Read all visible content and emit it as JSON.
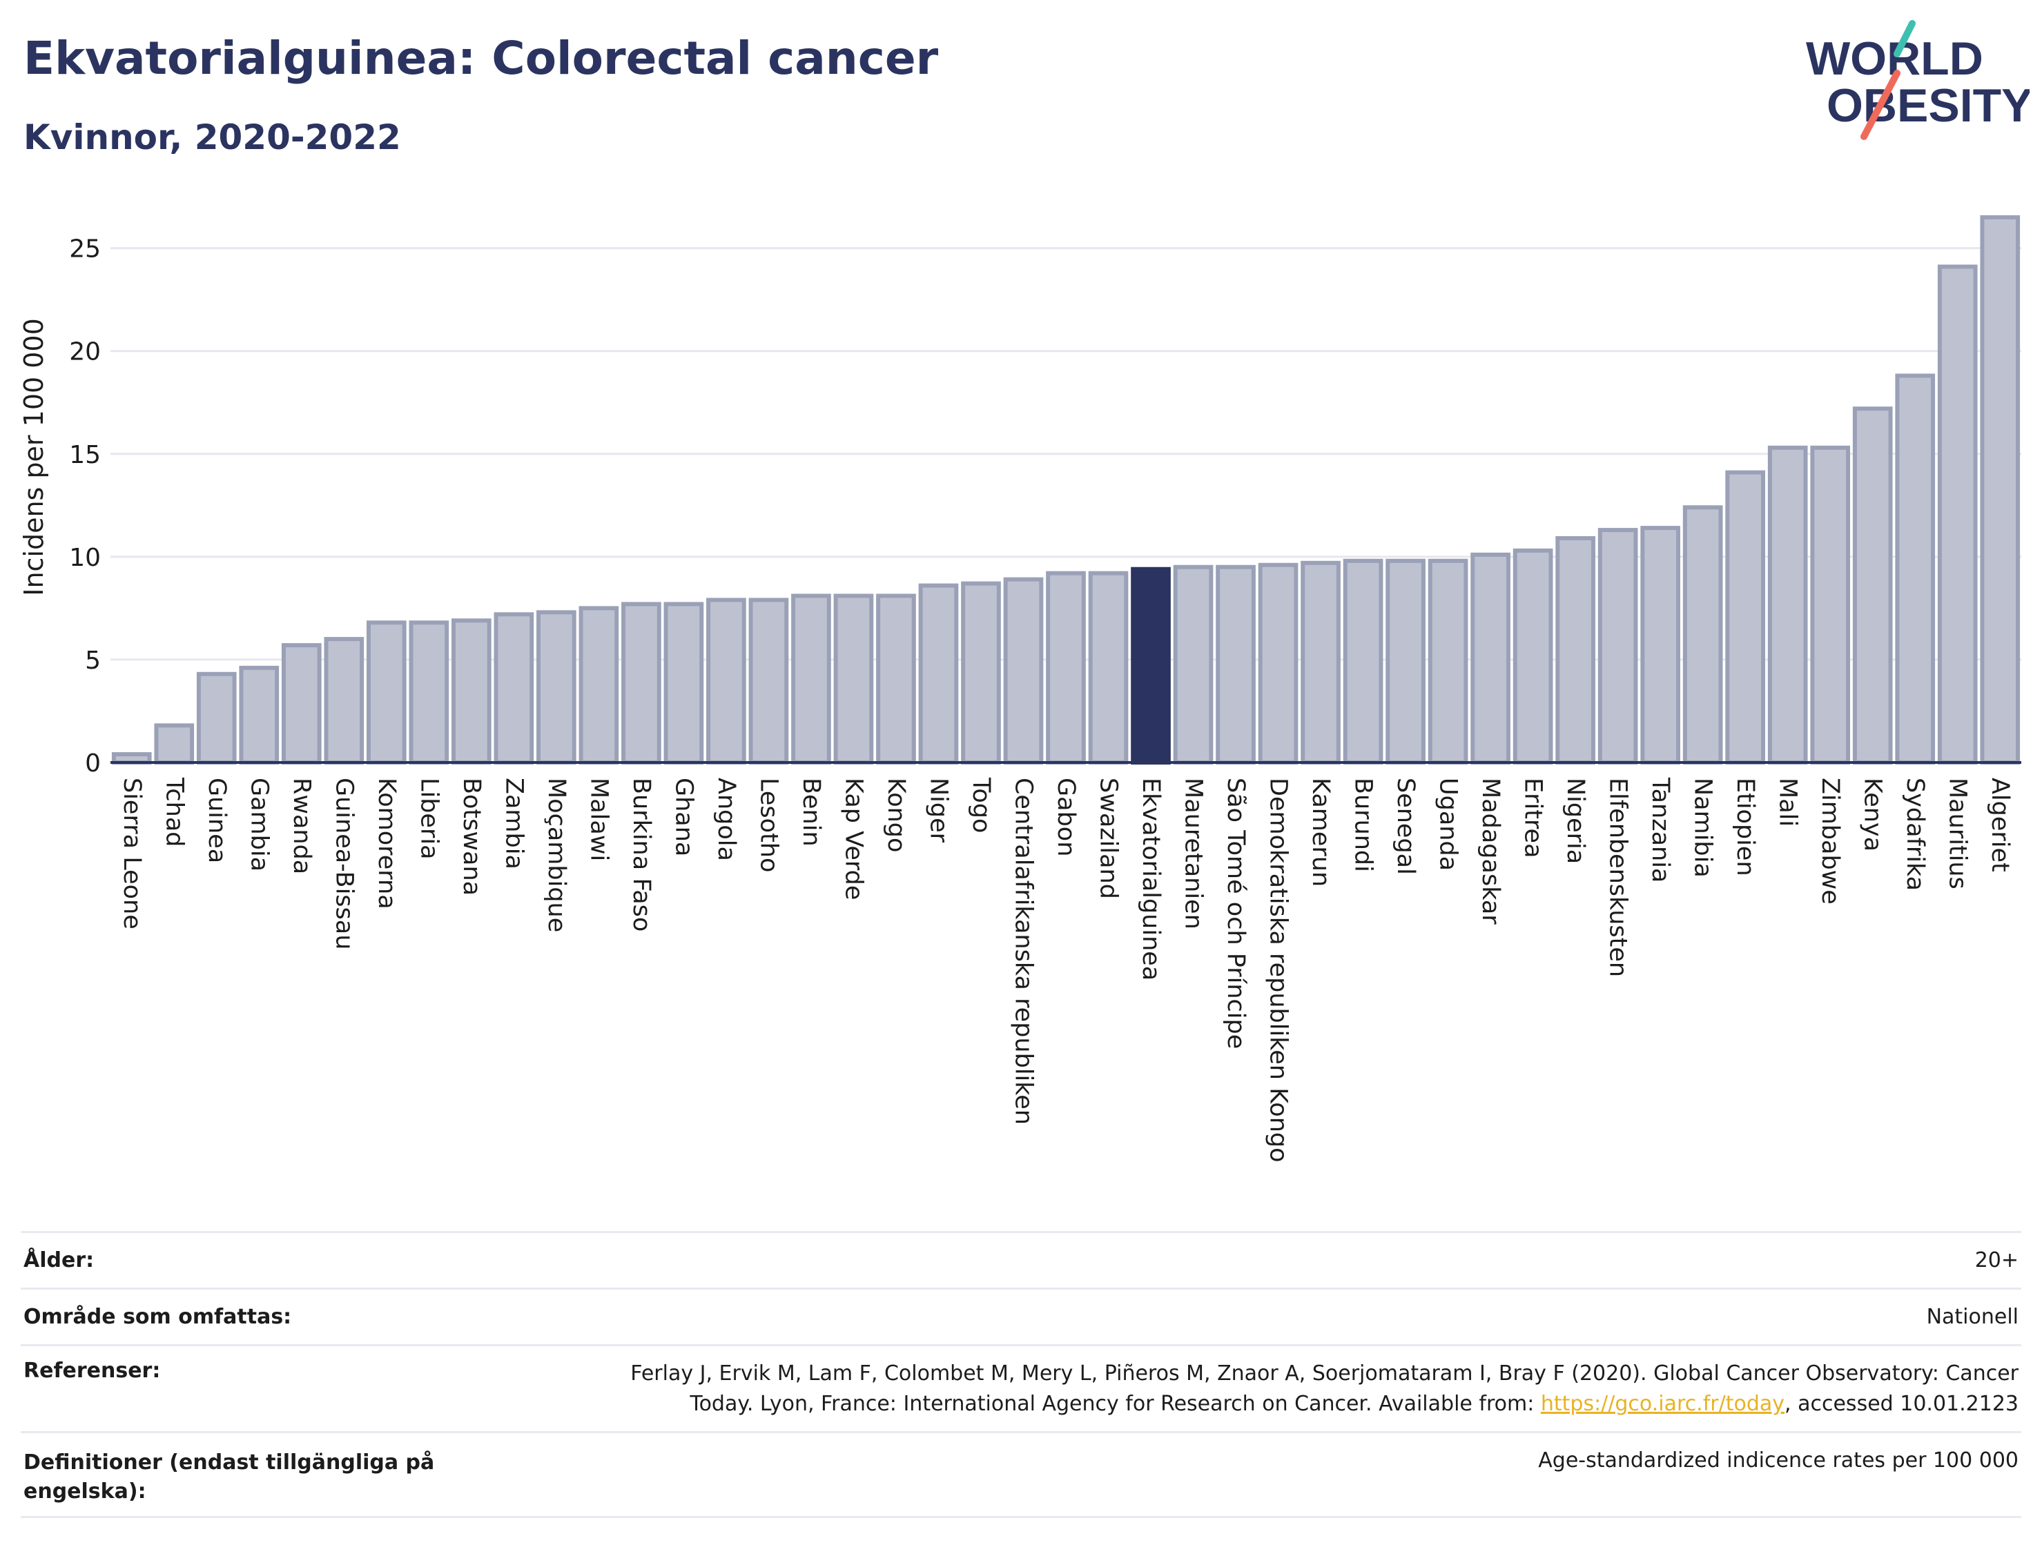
{
  "header": {
    "title": "Ekvatorialguinea: Colorectal cancer",
    "subtitle": "Kvinnor, 2020-2022"
  },
  "logo": {
    "line1": "WORLD",
    "line2": "OBESITY",
    "icon": "world-obesity-logo"
  },
  "colors": {
    "bar": "#bec2d0",
    "bar_border": "#9aa1b7",
    "highlight": "#2b3460",
    "title": "#2b3460",
    "axis": "#2b3460",
    "grid": "#e6e8ee",
    "link": "#e9b224"
  },
  "chart_data": {
    "type": "bar",
    "title": "Ekvatorialguinea: Colorectal cancer",
    "subtitle": "Kvinnor, 2020-2022",
    "xlabel": "",
    "ylabel": "Incidens per 100 000",
    "ylim": [
      0,
      27
    ],
    "yticks": [
      0,
      5,
      10,
      15,
      20,
      25
    ],
    "grid": true,
    "highlight": "Ekvatorialguinea",
    "categories": [
      "Sierra Leone",
      "Tchad",
      "Guinea",
      "Gambia",
      "Rwanda",
      "Guinea-Bissau",
      "Komorerna",
      "Liberia",
      "Botswana",
      "Zambia",
      "Moçambique",
      "Malawi",
      "Burkina Faso",
      "Ghana",
      "Angola",
      "Lesotho",
      "Benin",
      "Kap Verde",
      "Kongo",
      "Niger",
      "Togo",
      "Centralafrikanska republiken",
      "Gabon",
      "Swaziland",
      "Ekvatorialguinea",
      "Mauretanien",
      "São Tomé och Príncipe",
      "Demokratiska republiken Kongo",
      "Kamerun",
      "Burundi",
      "Senegal",
      "Uganda",
      "Madagaskar",
      "Eritrea",
      "Nigeria",
      "Elfenbenskusten",
      "Tanzania",
      "Namibia",
      "Etiopien",
      "Mali",
      "Zimbabwe",
      "Kenya",
      "Sydafrika",
      "Mauritius",
      "Algeriet"
    ],
    "values": [
      0.4,
      1.8,
      4.3,
      4.6,
      5.7,
      6.0,
      6.8,
      6.8,
      6.9,
      7.2,
      7.3,
      7.5,
      7.7,
      7.7,
      7.9,
      7.9,
      8.1,
      8.1,
      8.1,
      8.6,
      8.7,
      8.9,
      9.2,
      9.2,
      9.4,
      9.5,
      9.5,
      9.6,
      9.7,
      9.8,
      9.8,
      9.8,
      10.1,
      10.3,
      10.9,
      11.3,
      11.4,
      12.4,
      14.1,
      15.3,
      15.3,
      17.2,
      18.8,
      24.1,
      26.5
    ]
  },
  "info": {
    "age_label": "Ålder:",
    "age_value": "20+",
    "area_label": "Område som omfattas:",
    "area_value": "Nationell",
    "ref_label": "Referenser:",
    "ref_text_1": "Ferlay J, Ervik M, Lam F, Colombet M, Mery L, Piñeros M, Znaor A, Soerjomataram I, Bray F (2020). Global Cancer Observatory: Cancer",
    "ref_text_2": "Today. Lyon, France: International Agency for Research on Cancer. Available from: ",
    "ref_link": "https://gco.iarc.fr/today",
    "ref_text_3": ", accessed 10.01.2123",
    "def_label": "Definitioner (endast tillgängliga på engelska):",
    "def_value": "Age-standardized indicence rates per 100 000"
  }
}
